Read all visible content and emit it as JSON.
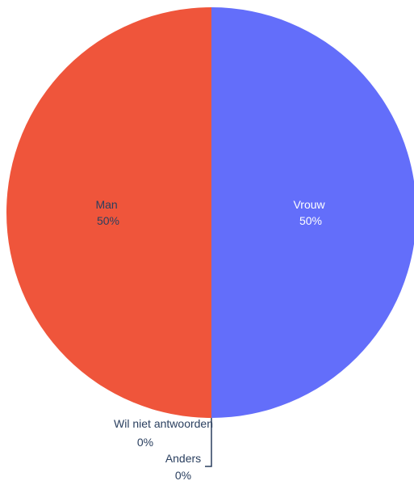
{
  "chart_data": {
    "type": "pie",
    "slices": [
      {
        "label": "Vrouw",
        "value": 50,
        "percent": "50%",
        "color": "#636efa",
        "text_color": "#ffffff"
      },
      {
        "label": "Man",
        "value": 50,
        "percent": "50%",
        "color": "#ef553b",
        "text_color": "#2a3f5f"
      },
      {
        "label": "Wil niet antwoorden",
        "value": 0,
        "percent": "0%",
        "color": "#00cc96",
        "text_color": "#2a3f5f"
      },
      {
        "label": "Anders",
        "value": 0,
        "percent": "0%",
        "color": "#ab63fa",
        "text_color": "#2a3f5f"
      }
    ],
    "start_angle_deg": 0,
    "direction": "clockwise",
    "leader_line_color": "#2a3f5f"
  }
}
